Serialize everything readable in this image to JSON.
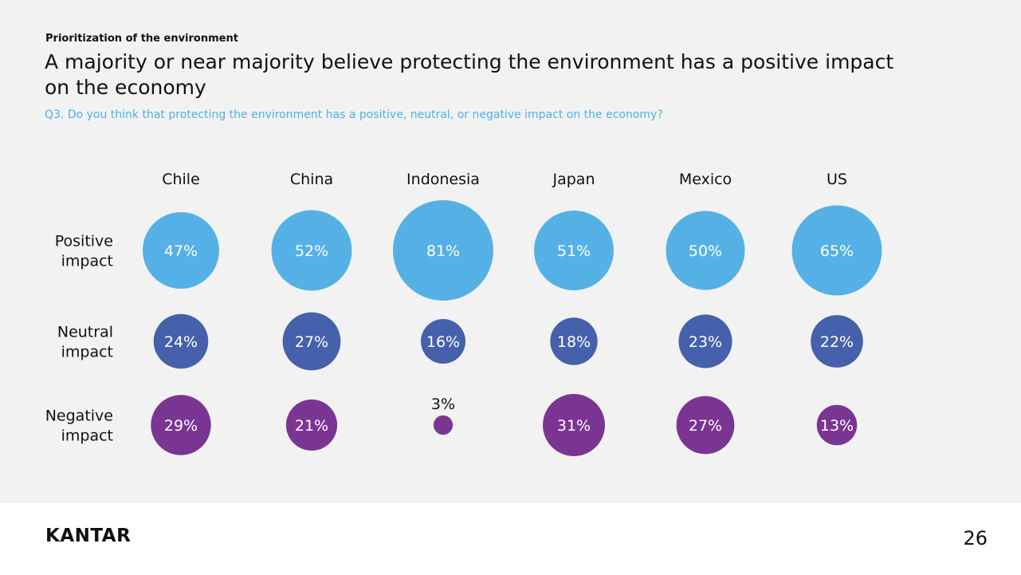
{
  "header": {
    "section": "Prioritization of the environment",
    "title": "A majority or near majority believe protecting the environment has a positive impact on the economy",
    "question": "Q3. Do you think that protecting the environment has a positive, neutral, or negative impact on the economy?"
  },
  "chart_data": {
    "type": "bubble",
    "categories": [
      "Chile",
      "China",
      "Indonesia",
      "Japan",
      "Mexico",
      "US"
    ],
    "series": [
      {
        "name": "Positive impact",
        "values": [
          47,
          52,
          81,
          51,
          50,
          65
        ],
        "color": "#55b1e5",
        "label_lines": [
          "Positive",
          "impact"
        ]
      },
      {
        "name": "Neutral impact",
        "values": [
          24,
          27,
          16,
          18,
          23,
          22
        ],
        "color": "#4561ab",
        "label_lines": [
          "Neutral",
          "impact"
        ]
      },
      {
        "name": "Negative impact",
        "values": [
          29,
          21,
          3,
          31,
          27,
          13
        ],
        "color": "#7a3592",
        "label_lines": [
          "Negative",
          "impact"
        ]
      }
    ],
    "value_suffix": "%",
    "bubble_label_color": "#ffffff",
    "unit": "percent"
  },
  "footer": {
    "logo": "KANTAR",
    "page_number": "26"
  }
}
